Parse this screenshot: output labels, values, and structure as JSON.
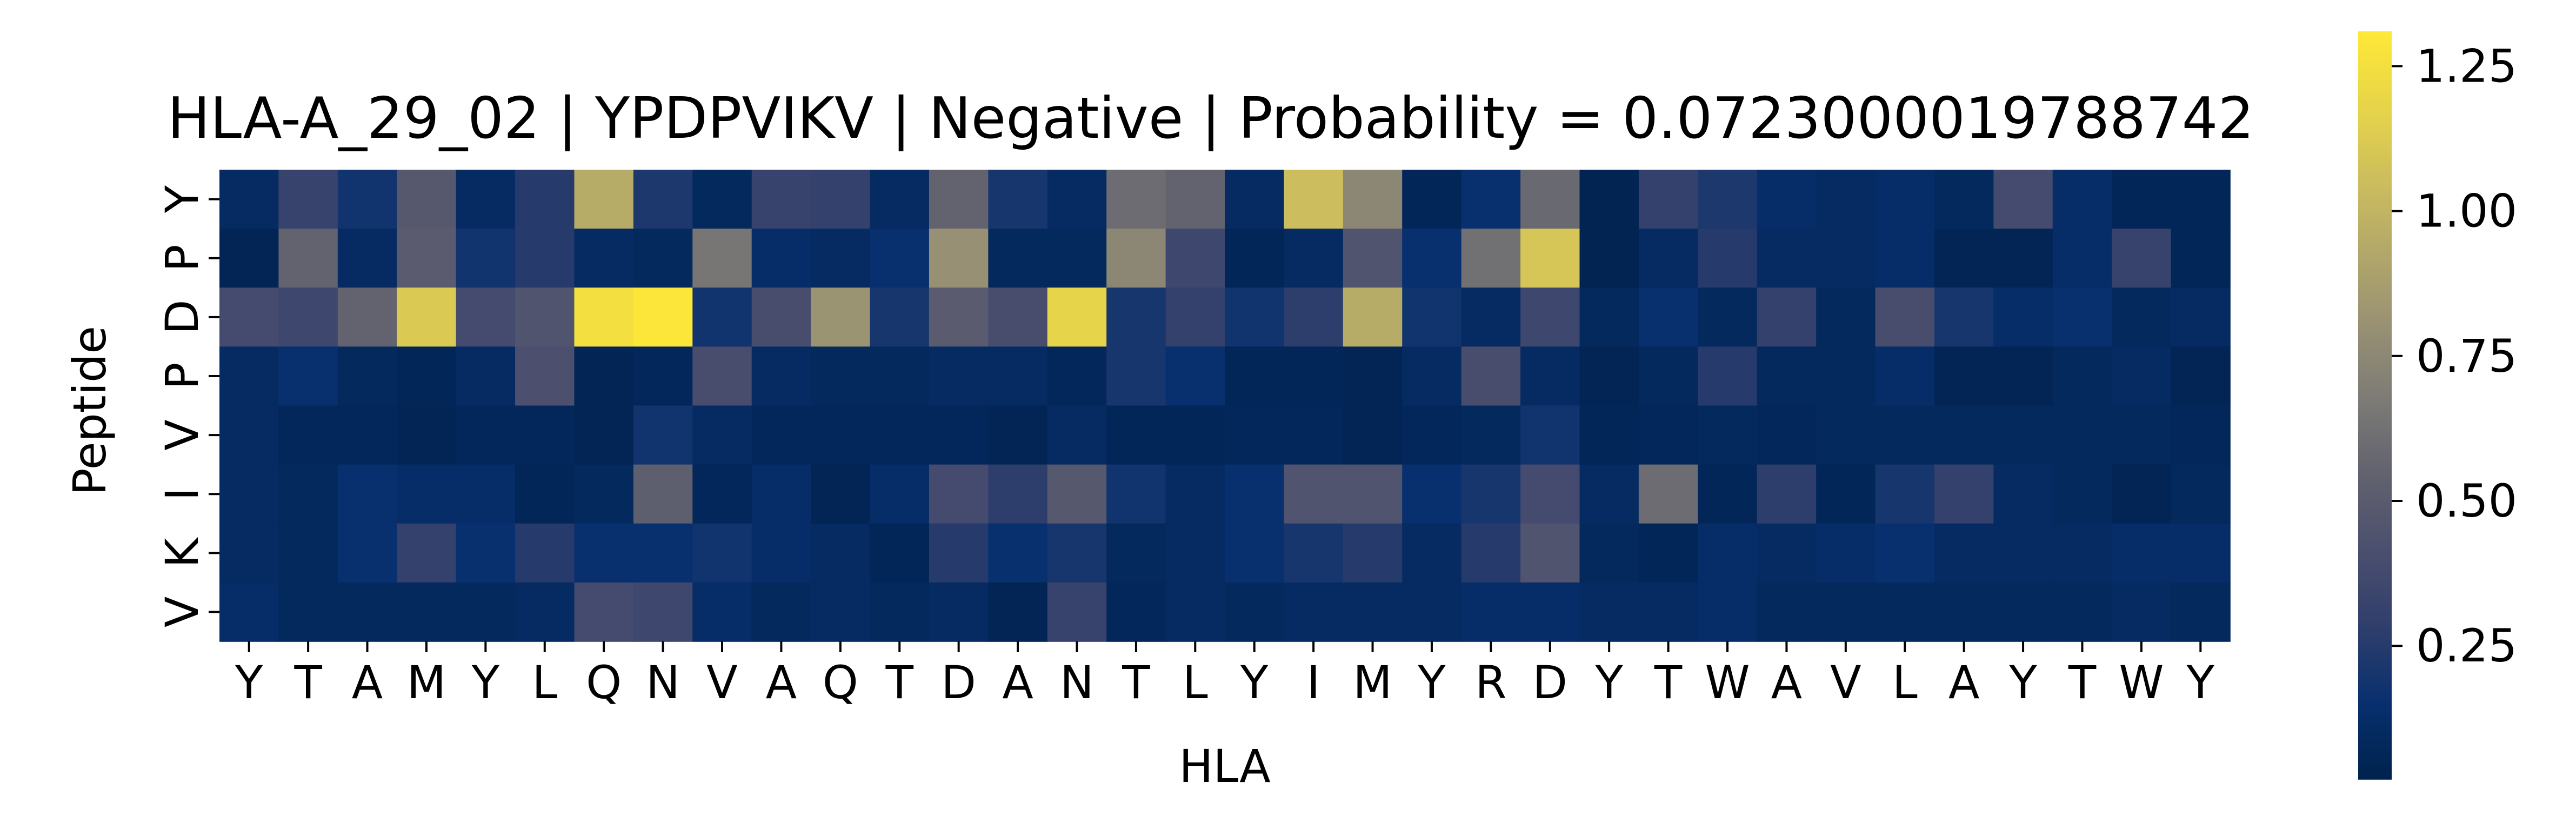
{
  "chart_data": {
    "type": "heatmap",
    "title": "HLA-A_29_02 | YPDPVIKV | Negative | Probability = 0.0723000019788742",
    "xlabel": "HLA",
    "ylabel": "Peptide",
    "x_ticks": [
      "Y",
      "T",
      "A",
      "M",
      "Y",
      "L",
      "Q",
      "N",
      "V",
      "A",
      "Q",
      "T",
      "D",
      "A",
      "N",
      "T",
      "L",
      "Y",
      "I",
      "M",
      "Y",
      "R",
      "D",
      "Y",
      "T",
      "W",
      "A",
      "V",
      "L",
      "A",
      "Y",
      "T",
      "W",
      "Y"
    ],
    "y_ticks": [
      "Y",
      "P",
      "D",
      "P",
      "V",
      "I",
      "K",
      "V"
    ],
    "colormap": "cividis",
    "colorbar": {
      "vmin": 0.02,
      "vmax": 1.31,
      "ticks": [
        0.25,
        0.5,
        0.75,
        1.0,
        1.25
      ],
      "tick_labels": [
        "0.25",
        "0.50",
        "0.75",
        "1.00",
        "1.25"
      ]
    },
    "values": [
      [
        0.1,
        0.32,
        0.18,
        0.48,
        0.1,
        0.25,
        0.95,
        0.22,
        0.08,
        0.32,
        0.3,
        0.1,
        0.55,
        0.2,
        0.1,
        0.6,
        0.55,
        0.1,
        1.05,
        0.75,
        0.06,
        0.15,
        0.58,
        0.04,
        0.3,
        0.22,
        0.12,
        0.1,
        0.12,
        0.08,
        0.38,
        0.12,
        0.06,
        0.06
      ],
      [
        0.05,
        0.55,
        0.1,
        0.5,
        0.18,
        0.25,
        0.1,
        0.08,
        0.65,
        0.12,
        0.1,
        0.15,
        0.8,
        0.08,
        0.08,
        0.75,
        0.35,
        0.06,
        0.1,
        0.45,
        0.15,
        0.62,
        1.1,
        0.04,
        0.1,
        0.25,
        0.1,
        0.1,
        0.12,
        0.05,
        0.05,
        0.12,
        0.32,
        0.06
      ],
      [
        0.38,
        0.35,
        0.55,
        1.12,
        0.38,
        0.45,
        1.25,
        1.3,
        0.18,
        0.4,
        0.82,
        0.2,
        0.5,
        0.4,
        1.18,
        0.2,
        0.3,
        0.18,
        0.28,
        0.95,
        0.18,
        0.1,
        0.35,
        0.08,
        0.15,
        0.08,
        0.3,
        0.08,
        0.4,
        0.2,
        0.12,
        0.15,
        0.08,
        0.1
      ],
      [
        0.1,
        0.15,
        0.08,
        0.06,
        0.1,
        0.42,
        0.05,
        0.07,
        0.4,
        0.1,
        0.08,
        0.08,
        0.1,
        0.1,
        0.07,
        0.2,
        0.15,
        0.06,
        0.06,
        0.05,
        0.1,
        0.4,
        0.1,
        0.05,
        0.08,
        0.25,
        0.08,
        0.08,
        0.12,
        0.05,
        0.05,
        0.08,
        0.1,
        0.05
      ],
      [
        0.1,
        0.07,
        0.07,
        0.05,
        0.07,
        0.07,
        0.05,
        0.18,
        0.1,
        0.07,
        0.07,
        0.07,
        0.07,
        0.05,
        0.1,
        0.06,
        0.06,
        0.07,
        0.07,
        0.05,
        0.07,
        0.08,
        0.18,
        0.06,
        0.07,
        0.08,
        0.07,
        0.08,
        0.08,
        0.08,
        0.08,
        0.08,
        0.08,
        0.07
      ],
      [
        0.1,
        0.08,
        0.15,
        0.12,
        0.12,
        0.06,
        0.08,
        0.52,
        0.07,
        0.12,
        0.05,
        0.12,
        0.38,
        0.28,
        0.48,
        0.18,
        0.1,
        0.15,
        0.45,
        0.45,
        0.15,
        0.2,
        0.38,
        0.1,
        0.6,
        0.06,
        0.28,
        0.06,
        0.2,
        0.3,
        0.1,
        0.08,
        0.05,
        0.08
      ],
      [
        0.1,
        0.08,
        0.15,
        0.3,
        0.15,
        0.25,
        0.15,
        0.15,
        0.18,
        0.12,
        0.1,
        0.06,
        0.25,
        0.15,
        0.2,
        0.08,
        0.1,
        0.15,
        0.2,
        0.25,
        0.1,
        0.25,
        0.45,
        0.08,
        0.06,
        0.12,
        0.1,
        0.12,
        0.15,
        0.1,
        0.1,
        0.1,
        0.12,
        0.12
      ],
      [
        0.12,
        0.08,
        0.08,
        0.08,
        0.08,
        0.1,
        0.38,
        0.35,
        0.12,
        0.08,
        0.1,
        0.08,
        0.1,
        0.05,
        0.32,
        0.07,
        0.1,
        0.08,
        0.1,
        0.1,
        0.1,
        0.12,
        0.12,
        0.1,
        0.1,
        0.12,
        0.08,
        0.08,
        0.08,
        0.08,
        0.08,
        0.08,
        0.1,
        0.08
      ]
    ]
  }
}
